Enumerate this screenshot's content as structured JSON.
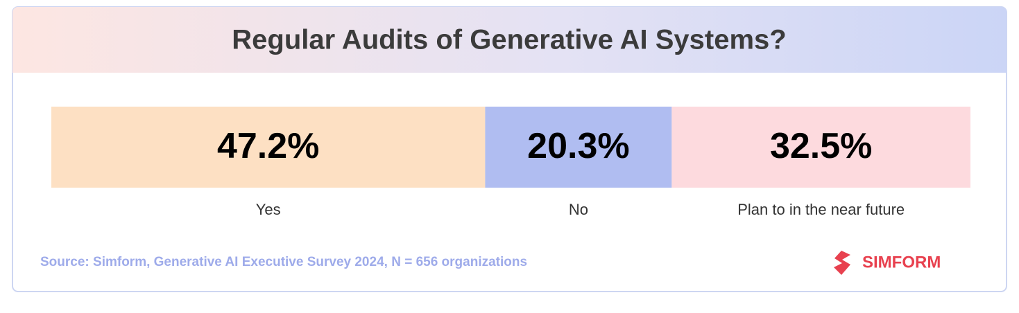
{
  "chart_data": {
    "type": "stacked-bar",
    "title": "Regular Audits of Generative AI Systems?",
    "categories": [
      "Yes",
      "No",
      "Plan to in the near future"
    ],
    "values": [
      47.2,
      20.3,
      32.5
    ],
    "value_labels": [
      "47.2%",
      "20.3%",
      "32.5%"
    ],
    "colors": [
      "#fde0c3",
      "#b0bdf1",
      "#fddade"
    ],
    "xlim": [
      0,
      100
    ]
  },
  "source": "Source: Simform, Generative AI Executive Survey 2024, N = 656 organizations",
  "logo": "SIMFORM"
}
